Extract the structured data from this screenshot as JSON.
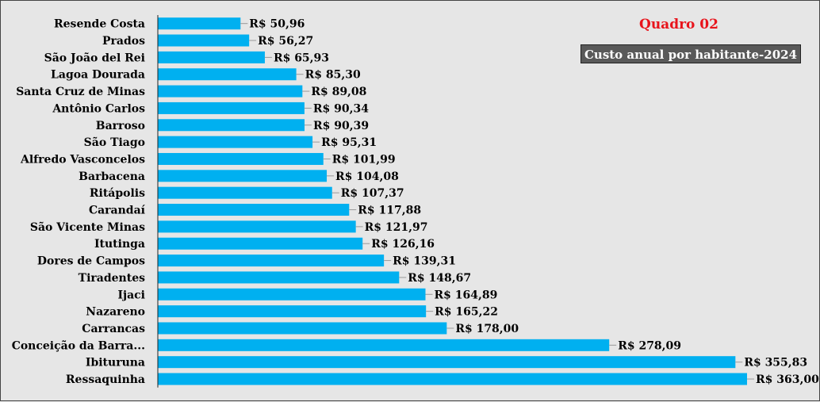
{
  "chart_data": {
    "type": "bar",
    "orientation": "horizontal",
    "title": "Quadro 02",
    "subtitle": "Custo anual por habitante-2024",
    "categories": [
      "Resende Costa",
      "Prados",
      "São João del Rei",
      "Lagoa Dourada",
      "Santa Cruz de Minas",
      "Antônio Carlos",
      "Barroso",
      "São Tiago",
      "Alfredo Vasconcelos",
      "Barbacena",
      "Ritápolis",
      "Carandaí",
      "São Vicente Minas",
      "Itutinga",
      "Dores de Campos",
      "Tiradentes",
      "Ijaci",
      "Nazareno",
      "Carrancas",
      "Conceição da Barra...",
      "Ibituruna",
      "Ressaquinha"
    ],
    "values": [
      50.96,
      56.27,
      65.93,
      85.3,
      89.08,
      90.34,
      90.39,
      95.31,
      101.99,
      104.08,
      107.37,
      117.88,
      121.97,
      126.16,
      139.31,
      148.67,
      164.89,
      165.22,
      178.0,
      278.09,
      355.83,
      363.0
    ],
    "value_labels": [
      "R$ 50,96",
      "R$ 56,27",
      "R$ 65,93",
      "R$ 85,30",
      "R$ 89,08",
      "R$ 90,34",
      "R$ 90,39",
      "R$ 95,31",
      "R$ 101,99",
      "R$ 104,08",
      "R$ 107,37",
      "R$ 117,88",
      "R$ 121,97",
      "R$ 126,16",
      "R$ 139,31",
      "R$ 148,67",
      "R$ 164,89",
      "R$ 165,22",
      "R$ 178,00",
      "R$ 278,09",
      "R$ 355,83",
      "R$ 363,00"
    ],
    "xlim": [
      0,
      363
    ],
    "grid": false,
    "legend": "none",
    "bar_color": "#00b0f0"
  }
}
